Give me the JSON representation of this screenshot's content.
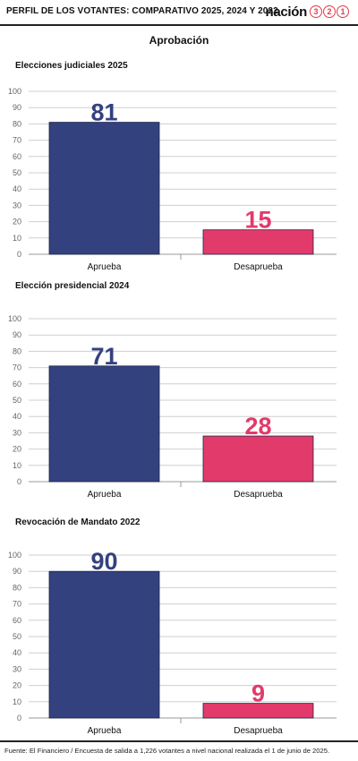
{
  "header": {
    "title": "PERFIL DE LOS VOTANTES: COMPARATIVO 2025, 2024 Y 2022",
    "logo_word": "nación",
    "logo_digits": [
      "3",
      "2",
      "1"
    ]
  },
  "main_title": "Aprobación",
  "source": "Fuente: El Financiero / Encuesta de salida a 1,226 votantes a nivel nacional realizada el 1 de junio de 2025.",
  "colors": {
    "aprueba": "#34417f",
    "desaprueba": "#e23a6b",
    "grid": "#cfcfcf",
    "accent": "#e23a4e"
  },
  "chart_data": [
    {
      "type": "bar",
      "title": "Elecciones judiciales 2025",
      "categories": [
        "Aprueba",
        "Desaprueba"
      ],
      "values": [
        81,
        15
      ],
      "ylim": [
        0,
        100
      ],
      "yticks": [
        0,
        10,
        20,
        30,
        40,
        50,
        60,
        70,
        80,
        90,
        100
      ],
      "grid": true
    },
    {
      "type": "bar",
      "title": "Elección presidencial 2024",
      "categories": [
        "Aprueba",
        "Desaprueba"
      ],
      "values": [
        71,
        28
      ],
      "ylim": [
        0,
        100
      ],
      "yticks": [
        0,
        10,
        20,
        30,
        40,
        50,
        60,
        70,
        80,
        90,
        100
      ],
      "grid": true
    },
    {
      "type": "bar",
      "title": "Revocación de Mandato 2022",
      "categories": [
        "Aprueba",
        "Desaprueba"
      ],
      "values": [
        90,
        9
      ],
      "ylim": [
        0,
        100
      ],
      "yticks": [
        0,
        10,
        20,
        30,
        40,
        50,
        60,
        70,
        80,
        90,
        100
      ],
      "grid": true
    }
  ]
}
